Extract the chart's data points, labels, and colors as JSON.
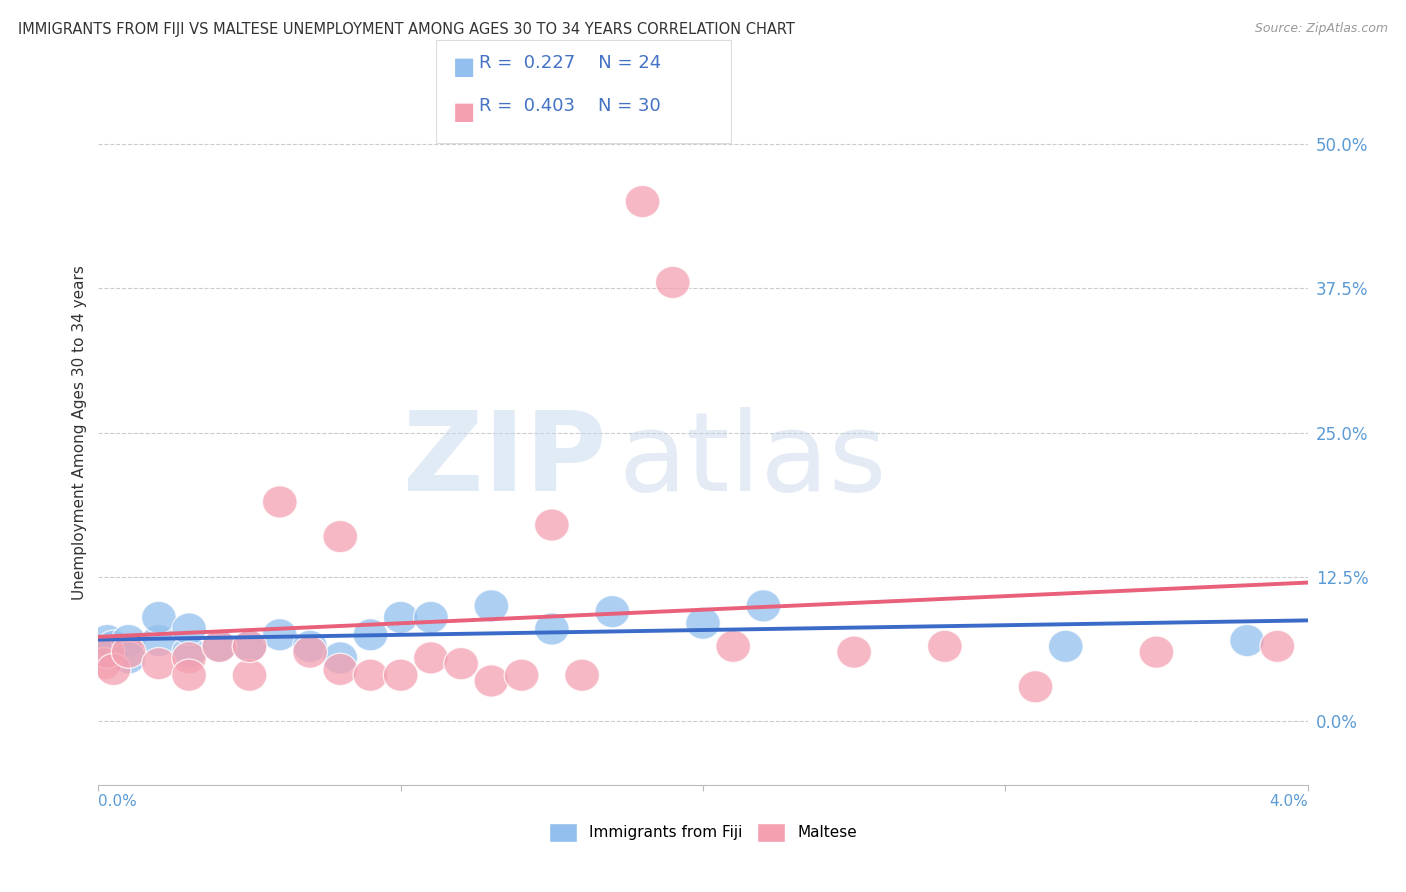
{
  "title": "IMMIGRANTS FROM FIJI VS MALTESE UNEMPLOYMENT AMONG AGES 30 TO 34 YEARS CORRELATION CHART",
  "source": "Source: ZipAtlas.com",
  "ylabel": "Unemployment Among Ages 30 to 34 years",
  "ytick_labels": [
    "0.0%",
    "12.5%",
    "25.0%",
    "37.5%",
    "50.0%"
  ],
  "ytick_values": [
    0.0,
    0.125,
    0.25,
    0.375,
    0.5
  ],
  "xlim": [
    0.0,
    0.04
  ],
  "ylim": [
    -0.055,
    0.555
  ],
  "fiji_R": 0.227,
  "fiji_N": 24,
  "maltese_R": 0.403,
  "maltese_N": 30,
  "fiji_color": "#92BFED",
  "maltese_color": "#F4A0B0",
  "fiji_line_color": "#3B6BC8",
  "maltese_line_color": "#E8607A",
  "fiji_x": [
    0.0002,
    0.0003,
    0.0005,
    0.001,
    0.001,
    0.002,
    0.002,
    0.003,
    0.003,
    0.004,
    0.005,
    0.006,
    0.007,
    0.008,
    0.009,
    0.01,
    0.011,
    0.013,
    0.015,
    0.017,
    0.02,
    0.022,
    0.032,
    0.038
  ],
  "fiji_y": [
    0.06,
    0.07,
    0.065,
    0.07,
    0.055,
    0.07,
    0.09,
    0.06,
    0.08,
    0.065,
    0.065,
    0.075,
    0.065,
    0.055,
    0.075,
    0.09,
    0.09,
    0.1,
    0.08,
    0.095,
    0.085,
    0.1,
    0.065,
    0.07
  ],
  "maltese_x": [
    0.0002,
    0.0003,
    0.0005,
    0.001,
    0.002,
    0.003,
    0.003,
    0.004,
    0.005,
    0.005,
    0.006,
    0.007,
    0.008,
    0.008,
    0.009,
    0.01,
    0.011,
    0.012,
    0.013,
    0.014,
    0.015,
    0.016,
    0.018,
    0.019,
    0.021,
    0.025,
    0.028,
    0.031,
    0.035,
    0.039
  ],
  "maltese_y": [
    0.05,
    0.06,
    0.045,
    0.06,
    0.05,
    0.055,
    0.04,
    0.065,
    0.04,
    0.065,
    0.19,
    0.06,
    0.045,
    0.16,
    0.04,
    0.04,
    0.055,
    0.05,
    0.035,
    0.04,
    0.17,
    0.04,
    0.45,
    0.38,
    0.065,
    0.06,
    0.065,
    0.03,
    0.06,
    0.065
  ],
  "legend_fiji_label": "Immigrants from Fiji",
  "legend_maltese_label": "Maltese",
  "background_color": "#FFFFFF",
  "grid_color": "#CCCCCC",
  "xtick_positions": [
    0.0,
    0.01,
    0.02,
    0.03,
    0.04
  ]
}
